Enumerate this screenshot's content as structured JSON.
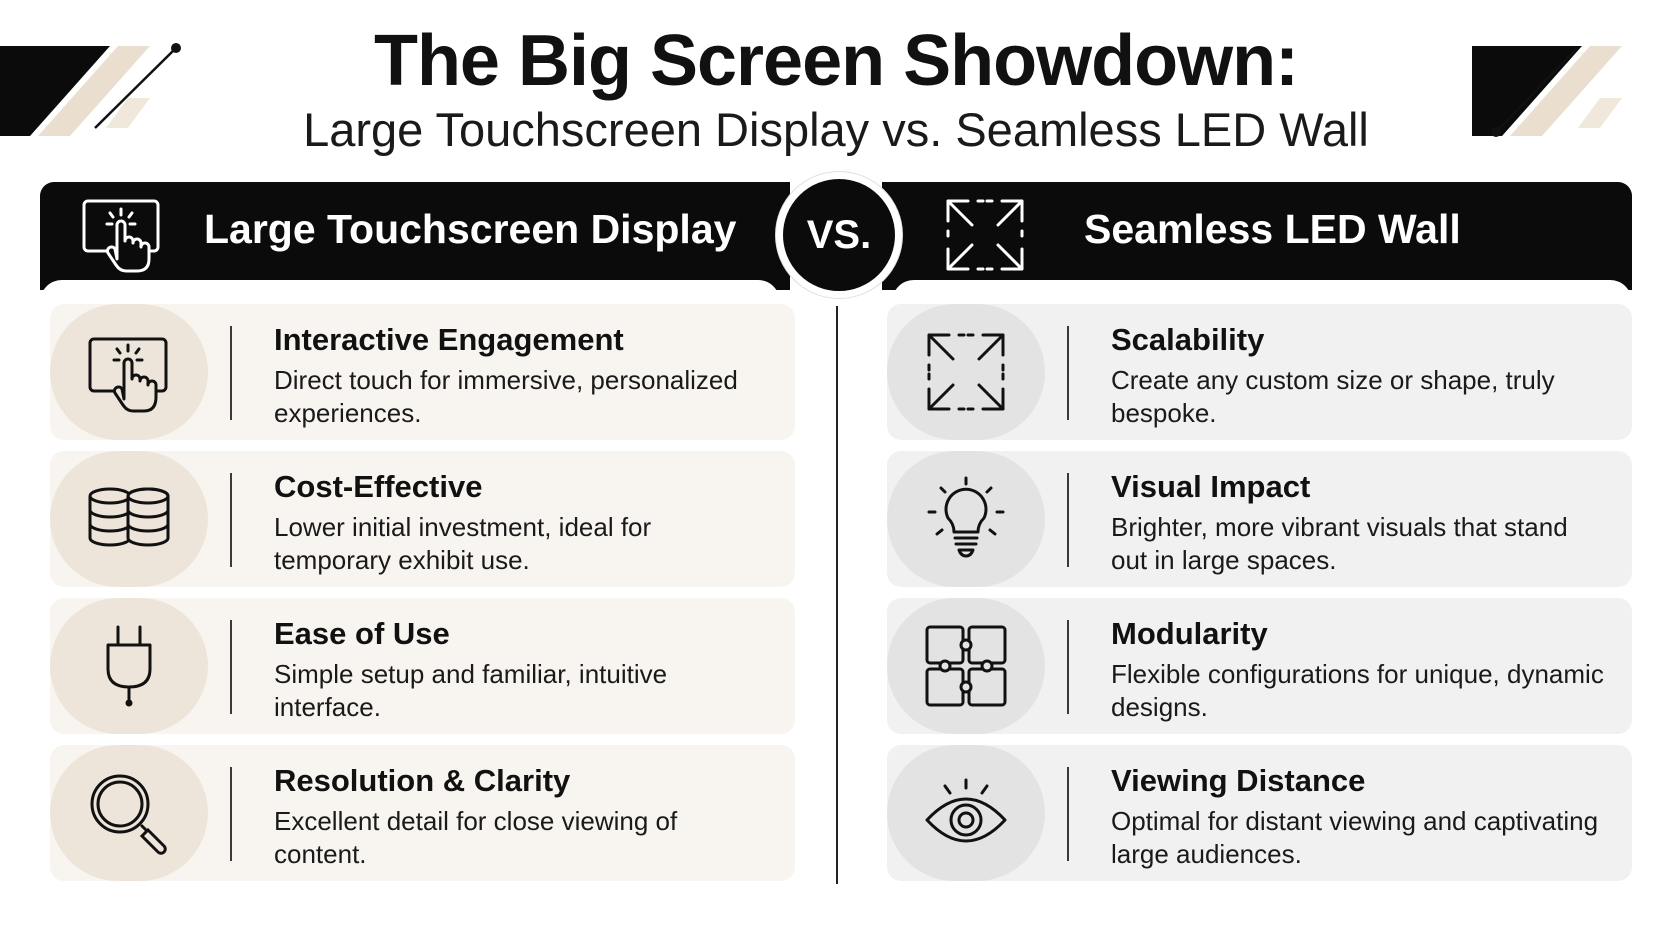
{
  "header": {
    "title": "The Big Screen Showdown:",
    "subtitle": "Large Touchscreen Display vs. Seamless LED Wall"
  },
  "vs_label": "VS.",
  "left": {
    "heading": "Large Touchscreen Display",
    "heading_icon": "touch-screen-icon",
    "items": [
      {
        "icon": "touch-screen-icon",
        "title": "Interactive Engagement",
        "desc": "Direct touch for immersive, personalized experiences."
      },
      {
        "icon": "coin-stack-icon",
        "title": "Cost-Effective",
        "desc": "Lower initial investment, ideal for temporary exhibit use."
      },
      {
        "icon": "power-plug-icon",
        "title": "Ease of Use",
        "desc": "Simple setup and familiar, intuitive interface."
      },
      {
        "icon": "magnifier-icon",
        "title": "Resolution & Clarity",
        "desc": "Excellent detail for close viewing of content."
      }
    ]
  },
  "right": {
    "heading": "Seamless LED Wall",
    "heading_icon": "expand-arrows-icon",
    "items": [
      {
        "icon": "expand-arrows-icon",
        "title": "Scalability",
        "desc": "Create any custom size or shape, truly bespoke."
      },
      {
        "icon": "lightbulb-icon",
        "title": "Visual Impact",
        "desc": "Brighter, more vibrant visuals that stand out in large spaces."
      },
      {
        "icon": "puzzle-modules-icon",
        "title": "Modularity",
        "desc": "Flexible configurations for unique, dynamic designs."
      },
      {
        "icon": "eye-icon",
        "title": "Viewing Distance",
        "desc": "Optimal for distant viewing and captivating large audiences."
      }
    ]
  },
  "colors": {
    "banner": "#0b0b0b",
    "left_card": "#f8f5f1",
    "left_icon_bg": "#eee5da",
    "right_card": "#f1f1f1",
    "right_icon_bg": "#e3e3e3",
    "accent_beige": "#e8dccb"
  }
}
